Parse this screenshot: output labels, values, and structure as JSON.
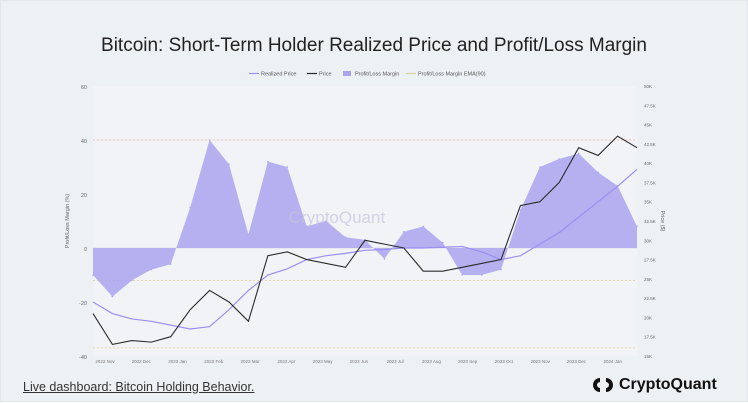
{
  "title": "Bitcoin: Short-Term Holder Realized Price and Profit/Loss Margin",
  "footer": {
    "live_link": "Live dashboard: Bitcoin Holding Behavior.",
    "brand_name": "CryptoQuant",
    "brand_icon": "cryptoquant-logo-icon"
  },
  "watermark": "CryptoQuant",
  "colors": {
    "realized_price": "#9a8ff2",
    "price": "#2b2b2b",
    "margin_fill": "#aaa4ef",
    "ema_line": "#d8cfa0",
    "ref_line_40": "#e7a9a9",
    "ref_line_minus": "#d9cc8c"
  },
  "chart_data": {
    "type": "area",
    "legend": [
      "Realized Price",
      "Price",
      "Profit/Loss Margin",
      "Profit/Loss Margin EMA(90)"
    ],
    "legend_placement": "top-center",
    "x_ticks": [
      "2022 Nov",
      "2022 Dec",
      "2023 Jan",
      "2023 Feb",
      "2023 Mar",
      "2023 Apr",
      "2023 May",
      "2023 Jun",
      "2023 Jul",
      "2023 Aug",
      "2023 Sep",
      "2023 Oct",
      "2023 Nov",
      "2023 Dec",
      "2024 Jan"
    ],
    "y_left": {
      "label": "Profit/Loss Margin (%)",
      "ticks": [
        "60",
        "40",
        "20",
        "0",
        "-20",
        "-40"
      ],
      "ylim": [
        -40,
        60
      ]
    },
    "y_right": {
      "label": "Price ($)",
      "ticks": [
        "50K",
        "47.5K",
        "45K",
        "42.5K",
        "40K",
        "37.5K",
        "35K",
        "32.5K",
        "30K",
        "27.5K",
        "25K",
        "22.5K",
        "20K",
        "17.5K",
        "15K"
      ],
      "ylim": [
        15000,
        50000
      ]
    },
    "reference_lines": [
      40,
      -12,
      -37
    ],
    "x": [
      0,
      0.5,
      1,
      1.5,
      2,
      2.5,
      3,
      3.5,
      4,
      4.5,
      5,
      5.5,
      6,
      6.5,
      7,
      7.5,
      8,
      8.5,
      9,
      9.5,
      10,
      10.5,
      11,
      11.5,
      12,
      12.5,
      13,
      13.5,
      14
    ],
    "series": [
      {
        "name": "Profit/Loss Margin",
        "values": [
          -10,
          -18,
          -12,
          -8,
          -6,
          15,
          40,
          31,
          5,
          32,
          30,
          8,
          10,
          4,
          3,
          -4,
          6,
          8,
          2,
          -10,
          -10,
          -8,
          14,
          30,
          33,
          35,
          28,
          23,
          8
        ]
      },
      {
        "name": "Price",
        "values": [
          20500,
          16500,
          17000,
          16800,
          17500,
          21000,
          23500,
          22000,
          19500,
          28000,
          28500,
          27500,
          27000,
          26500,
          30000,
          29500,
          29000,
          26000,
          26000,
          26500,
          27000,
          27500,
          34500,
          35000,
          37500,
          42000,
          41000,
          43500,
          42000
        ]
      },
      {
        "name": "Realized Price",
        "values": [
          22000,
          20500,
          19800,
          19500,
          19000,
          18500,
          18800,
          21000,
          23500,
          25500,
          26300,
          27500,
          28000,
          28300,
          28700,
          28800,
          29000,
          29000,
          29100,
          29200,
          28500,
          27500,
          28000,
          29500,
          31000,
          33000,
          35000,
          37000,
          39200
        ]
      }
    ]
  }
}
